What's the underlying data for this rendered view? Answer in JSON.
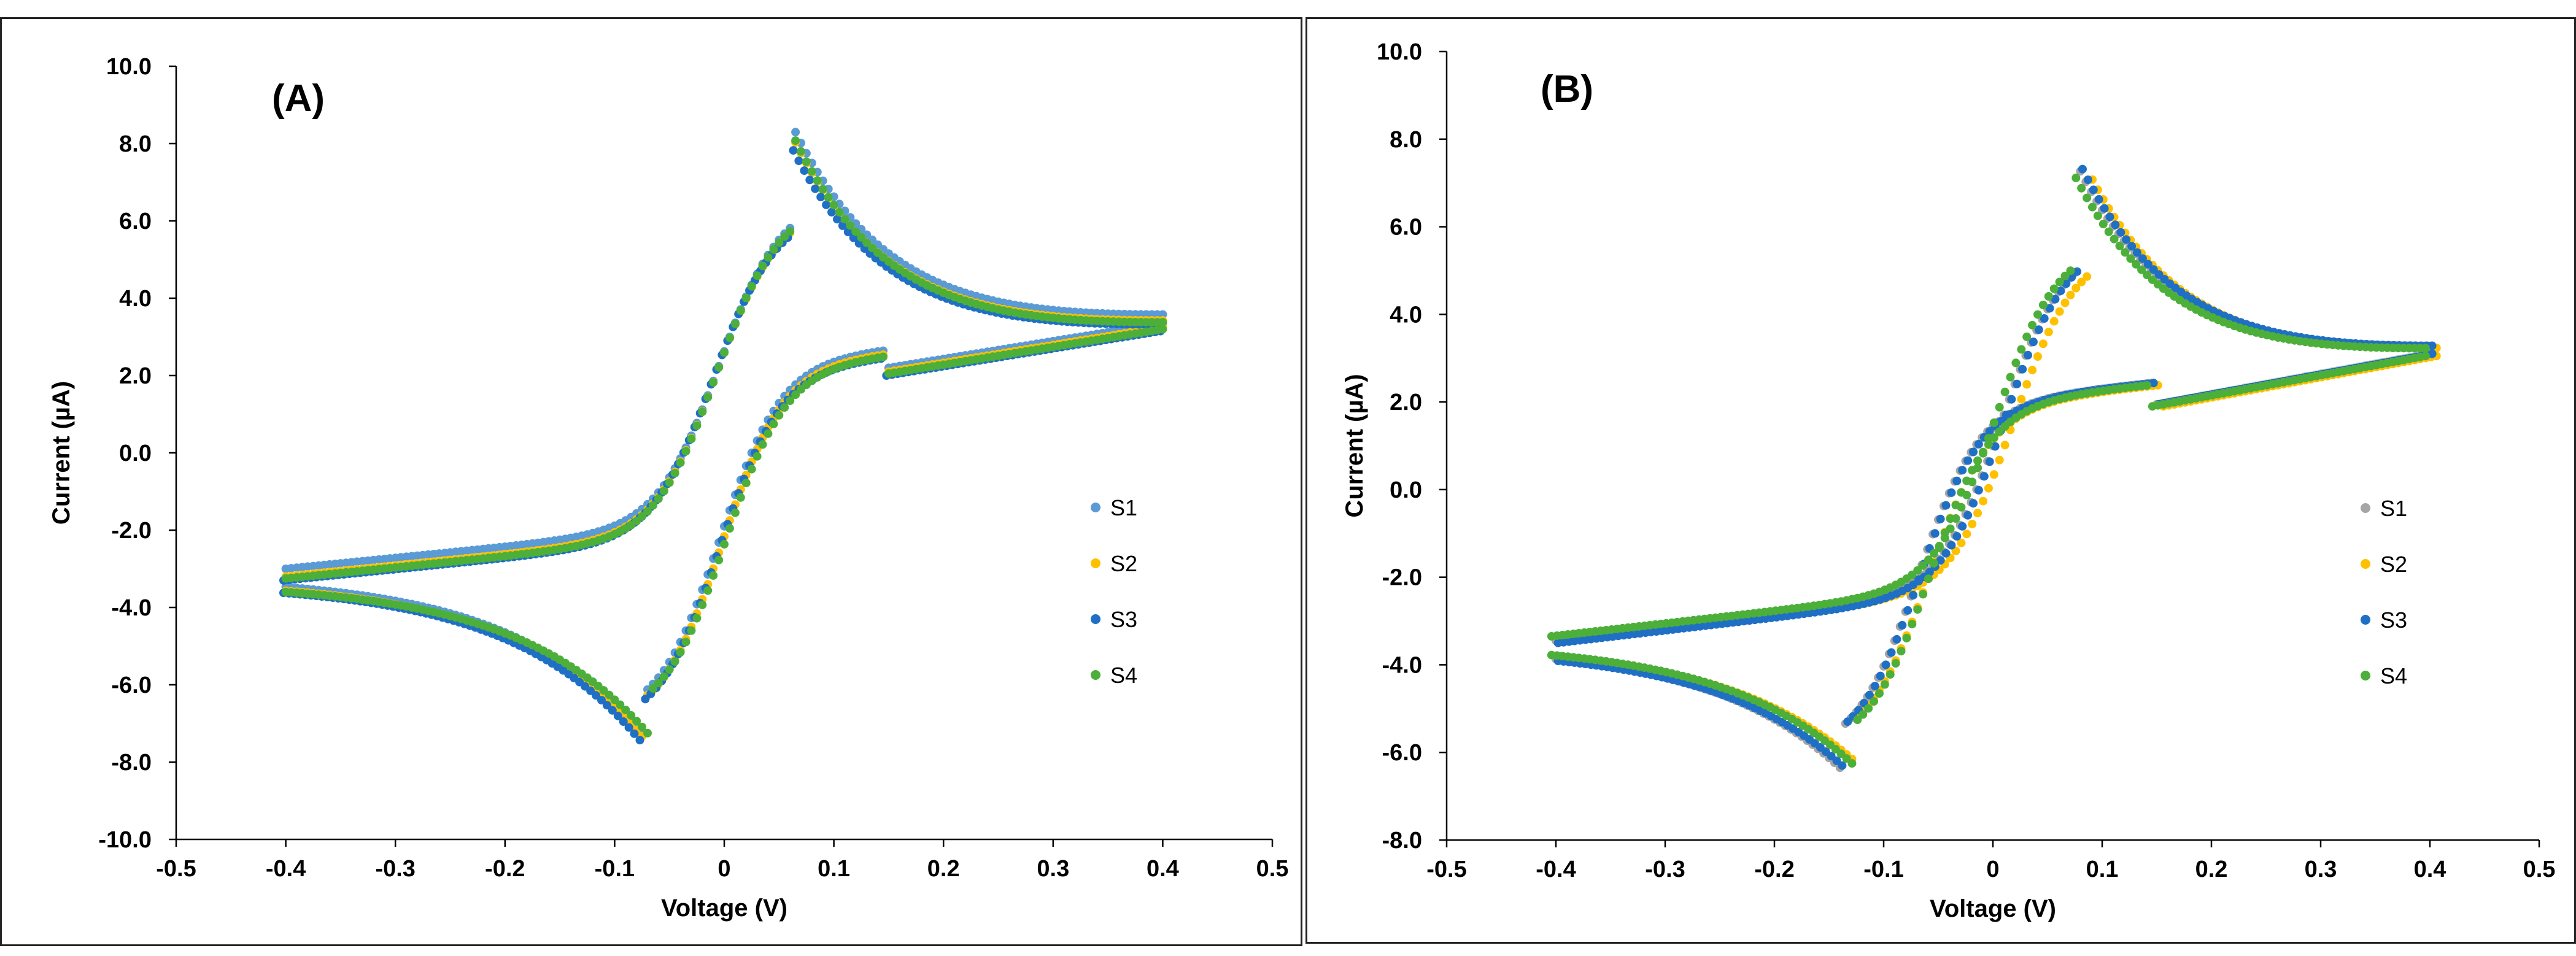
{
  "chart_data": [
    {
      "type": "scatter",
      "panel_label": "(A)",
      "xlabel": "Voltage (V)",
      "ylabel": "Current (µA)",
      "xlim": [
        -0.5,
        0.5
      ],
      "ylim": [
        -10.0,
        10.0
      ],
      "xticks": [
        -0.5,
        -0.4,
        -0.3,
        -0.2,
        -0.1,
        0,
        0.1,
        0.2,
        0.3,
        0.4,
        0.5
      ],
      "xtick_labels": [
        "-0.5",
        "-0.4",
        "-0.3",
        "-0.2",
        "-0.1",
        "0",
        "0.1",
        "0.2",
        "0.3",
        "0.4",
        "0.5"
      ],
      "yticks": [
        -10,
        -8,
        -6,
        -4,
        -2,
        0,
        2,
        4,
        6,
        8,
        10
      ],
      "ytick_labels": [
        "-10.0",
        "-8.0",
        "-6.0",
        "-4.0",
        "-2.0",
        "0.0",
        "2.0",
        "4.0",
        "6.0",
        "8.0",
        "10.0"
      ],
      "legend_position": "right",
      "series": [
        {
          "name": "S1",
          "color": "#5b9bd5",
          "cv": {
            "vmin": -0.4,
            "vmax": 0.4,
            "ep": 0.065,
            "ip": 8.75,
            "ec": -0.075,
            "ic": -7.35,
            "iend": 3.4,
            "iret": 3.3,
            "istart": -3.05,
            "ilow": -3.25,
            "w": 0.055,
            "dx": 0.0,
            "dy": 0.05
          }
        },
        {
          "name": "S2",
          "color": "#ffc000",
          "cv": {
            "vmin": -0.4,
            "vmax": 0.4,
            "ep": 0.063,
            "ip": 8.65,
            "ec": -0.073,
            "ic": -7.4,
            "iend": 3.3,
            "iret": 3.25,
            "istart": -3.2,
            "ilow": -3.3,
            "w": 0.055,
            "dx": 0.0,
            "dy": 0.0
          }
        },
        {
          "name": "S3",
          "color": "#1f6fc5",
          "cv": {
            "vmin": -0.4,
            "vmax": 0.4,
            "ep": 0.062,
            "ip": 8.55,
            "ec": -0.073,
            "ic": -7.45,
            "iend": 3.25,
            "iret": 3.2,
            "istart": -3.25,
            "ilow": -3.3,
            "w": 0.055,
            "dx": -0.002,
            "dy": -0.05
          }
        },
        {
          "name": "S4",
          "color": "#4caf3a",
          "cv": {
            "vmin": -0.4,
            "vmax": 0.4,
            "ep": 0.063,
            "ip": 8.7,
            "ec": -0.07,
            "ic": -7.25,
            "iend": 3.25,
            "iret": 3.2,
            "istart": -3.25,
            "ilow": -3.35,
            "w": 0.055,
            "dx": 0.0,
            "dy": 0.0
          }
        }
      ]
    },
    {
      "type": "scatter",
      "panel_label": "(B)",
      "xlabel": "Voltage (V)",
      "ylabel": "Current (µA)",
      "xlim": [
        -0.5,
        0.5
      ],
      "ylim": [
        -8.0,
        10.0
      ],
      "xticks": [
        -0.5,
        -0.4,
        -0.3,
        -0.2,
        -0.1,
        0,
        0.1,
        0.2,
        0.3,
        0.4,
        0.5
      ],
      "xtick_labels": [
        "-0.5",
        "-0.4",
        "-0.3",
        "-0.2",
        "-0.1",
        "0",
        "0.1",
        "0.2",
        "0.3",
        "0.4",
        "0.5"
      ],
      "yticks": [
        -8,
        -6,
        -4,
        -2,
        0,
        2,
        4,
        6,
        8,
        10
      ],
      "ytick_labels": [
        "-8.0",
        "-6.0",
        "-4.0",
        "-2.0",
        "0.0",
        "2.0",
        "4.0",
        "6.0",
        "8.0",
        "10.0"
      ],
      "legend_position": "right",
      "series": [
        {
          "name": "S1",
          "color": "#a5a5a5",
          "cv": {
            "vmin": -0.4,
            "vmax": 0.4,
            "ep": 0.078,
            "ip": 7.85,
            "ec": -0.14,
            "ic": -6.35,
            "iend": 3.15,
            "iret": 3.1,
            "istart": -3.45,
            "ilow": -3.55,
            "w": 0.07,
            "dx": 0.0,
            "dy": 0.0
          }
        },
        {
          "name": "S2",
          "color": "#ffc000",
          "cv": {
            "vmin": -0.4,
            "vmax": 0.4,
            "ep": 0.082,
            "ip": 7.7,
            "ec": -0.135,
            "ic": -6.15,
            "iend": 3.1,
            "iret": 3.05,
            "istart": -3.45,
            "ilow": -3.55,
            "w": 0.07,
            "dx": 0.006,
            "dy": 0.0
          }
        },
        {
          "name": "S3",
          "color": "#1f6fc5",
          "cv": {
            "vmin": -0.4,
            "vmax": 0.4,
            "ep": 0.078,
            "ip": 7.9,
            "ec": -0.14,
            "ic": -6.3,
            "iend": 3.15,
            "iret": 3.1,
            "istart": -3.5,
            "ilow": -3.6,
            "w": 0.07,
            "dx": 0.002,
            "dy": 0.0
          }
        },
        {
          "name": "S4",
          "color": "#4caf3a",
          "cv": {
            "vmin": -0.4,
            "vmax": 0.4,
            "ep": 0.076,
            "ip": 7.8,
            "ec": -0.125,
            "ic": -6.25,
            "iend": 3.1,
            "iret": 3.05,
            "istart": -3.35,
            "ilow": -3.5,
            "w": 0.072,
            "dx": -0.004,
            "dy": 0.0
          }
        }
      ]
    }
  ]
}
